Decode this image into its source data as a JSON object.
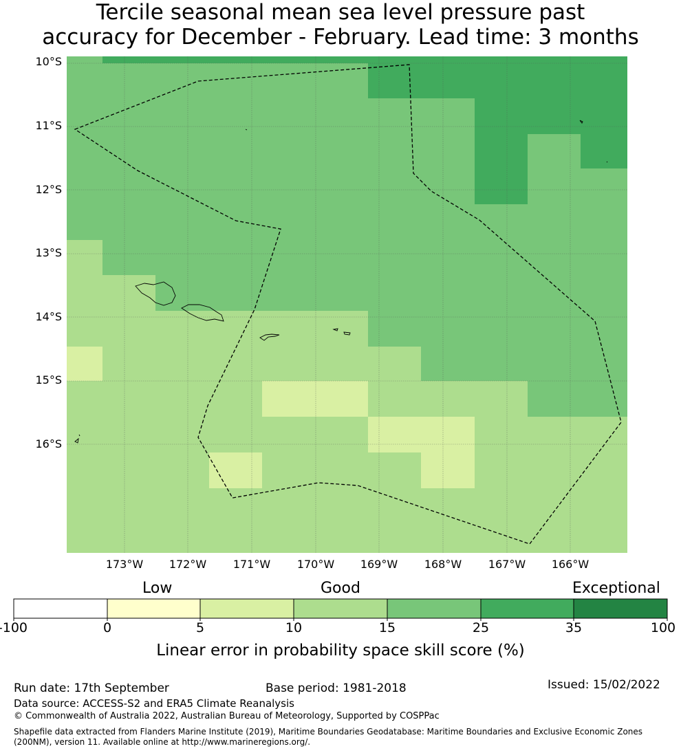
{
  "title_line1": "Tercile seasonal mean sea level pressure past",
  "title_line2": "accuracy for December - February. Lead time: 3 months",
  "map": {
    "latitude_labels": [
      "10°S",
      "11°S",
      "12°S",
      "13°S",
      "14°S",
      "15°S",
      "16°S"
    ],
    "longitude_labels": [
      "173°W",
      "172°W",
      "171°W",
      "170°W",
      "169°W",
      "168°W",
      "167°W",
      "166°W"
    ],
    "boundary_style": "dashed",
    "gridlines": true
  },
  "colorbar": {
    "categories": [
      "Low",
      "Good",
      "Exceptional"
    ],
    "ticks": [
      "-100",
      "0",
      "5",
      "10",
      "15",
      "25",
      "35",
      "100"
    ],
    "colors": [
      "#ffffff",
      "#ffffcc",
      "#d9f0a3",
      "#addd8e",
      "#78c679",
      "#41ab5d",
      "#238443"
    ],
    "title": "Linear error in probability space skill score (%)"
  },
  "footer": {
    "run_date": "Run date: 17th September",
    "base_period": "Base period: 1981-2018",
    "issued": "Issued: 15/02/2022",
    "data_source": "Data source: ACCESS-S2 and ERA5 Climate Reanalysis",
    "copyright": "© Commonwealth of Australia 2022, Australian Bureau of Meteorology, Supported by COSPPac",
    "shapefile_line1": "Shapefile data extracted from Flanders Marine Institute (2019), Maritime Boundaries Geodatabase: Maritime Boundaries and Exclusive Economic Zones",
    "shapefile_line2": "(200NM), version 11. Available online at http://www.marineregions.org/."
  }
}
